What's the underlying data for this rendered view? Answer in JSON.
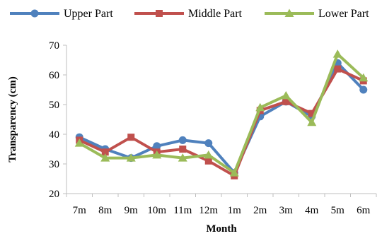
{
  "chart_data": {
    "type": "line",
    "title": "",
    "xlabel": "Month",
    "ylabel": "Transparency (cm)",
    "categories": [
      "7m",
      "8m",
      "9m",
      "10m",
      "11m",
      "12m",
      "1m",
      "2m",
      "3m",
      "4m",
      "5m",
      "6m"
    ],
    "y_ticks": [
      "20",
      "30",
      "40",
      "50",
      "60",
      "70"
    ],
    "ylim": [
      20,
      70
    ],
    "legend_position": "top",
    "grid": false,
    "series": [
      {
        "name": "Upper Part",
        "color": "#4f81bd",
        "marker": "circle",
        "values": [
          39,
          35,
          32,
          36,
          38,
          37,
          27,
          46,
          51,
          46,
          64,
          55
        ]
      },
      {
        "name": "Middle Part",
        "color": "#c0504d",
        "marker": "square",
        "values": [
          38,
          34,
          39,
          34,
          35,
          31,
          26,
          48,
          51,
          47,
          62,
          58
        ]
      },
      {
        "name": "Lower Part",
        "color": "#9bbb59",
        "marker": "triangle",
        "values": [
          37,
          32,
          32,
          33,
          32,
          33,
          27,
          49,
          53,
          44,
          67,
          59
        ]
      }
    ]
  }
}
